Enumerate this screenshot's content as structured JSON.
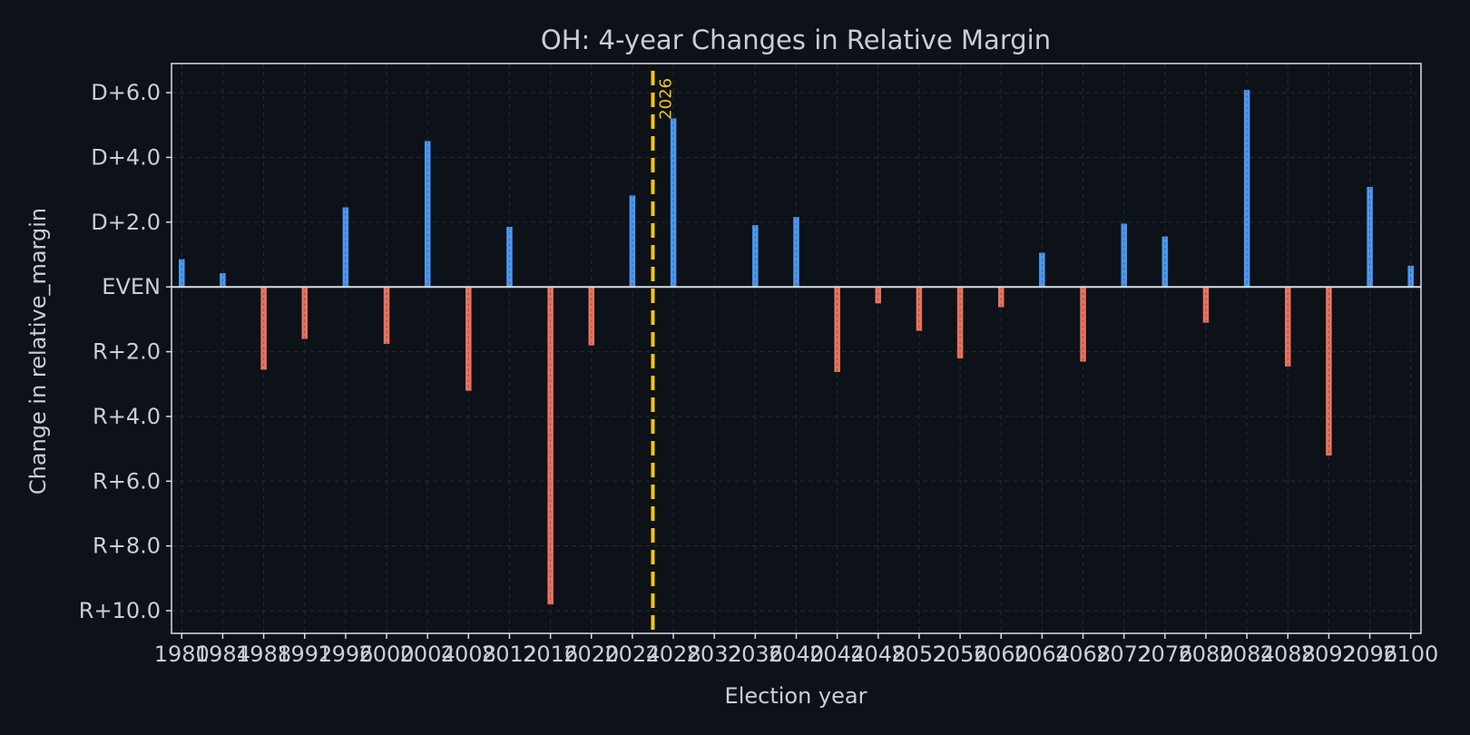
{
  "colors": {
    "background": "#0d1118",
    "dem": "#4c98f0",
    "rep": "#e8735e",
    "marker": "#f5c518",
    "text": "#c9ced8",
    "frame": "#d8dce4",
    "grid": "#232a35"
  },
  "chart_data": {
    "type": "bar",
    "title": "OH: 4-year Changes in Relative Margin",
    "xlabel": "Election year",
    "ylabel": "Change in relative_margin",
    "xlim": [
      1979,
      2101
    ],
    "ylim": [
      -10.7,
      6.9
    ],
    "grid": true,
    "x_ticks": [
      "1980",
      "1984",
      "1988",
      "1992",
      "1996",
      "2000",
      "2004",
      "2008",
      "2012",
      "2016",
      "2020",
      "2024",
      "2028",
      "2032",
      "2036",
      "2040",
      "2044",
      "2048",
      "2052",
      "2056",
      "2060",
      "2064",
      "2068",
      "2072",
      "2076",
      "2080",
      "2084",
      "2088",
      "2092",
      "2096",
      "2100"
    ],
    "y_ticks": [
      {
        "value": 6,
        "label": "D+6.0"
      },
      {
        "value": 4,
        "label": "D+4.0"
      },
      {
        "value": 2,
        "label": "D+2.0"
      },
      {
        "value": 0,
        "label": "EVEN"
      },
      {
        "value": -2,
        "label": "R+2.0"
      },
      {
        "value": -4,
        "label": "R+4.0"
      },
      {
        "value": -6,
        "label": "R+6.0"
      },
      {
        "value": -8,
        "label": "R+8.0"
      },
      {
        "value": -10,
        "label": "R+10.0"
      }
    ],
    "x": [
      1980,
      1984,
      1988,
      1992,
      1996,
      2000,
      2004,
      2008,
      2012,
      2016,
      2020,
      2024,
      2028,
      2032,
      2036,
      2040,
      2044,
      2048,
      2052,
      2056,
      2060,
      2064,
      2068,
      2072,
      2076,
      2080,
      2084,
      2088,
      2092,
      2096,
      2100
    ],
    "values": [
      0.85,
      0.42,
      -2.55,
      -1.6,
      2.45,
      -1.75,
      4.5,
      -3.2,
      1.85,
      -9.8,
      -1.8,
      2.82,
      5.2,
      0,
      1.9,
      2.15,
      -2.62,
      -0.5,
      -1.35,
      -2.2,
      -0.62,
      1.05,
      -2.3,
      1.95,
      1.55,
      -1.1,
      6.08,
      -2.45,
      -5.2,
      3.08,
      0.65
    ],
    "marker": {
      "x": 2026,
      "label": "2026"
    }
  }
}
